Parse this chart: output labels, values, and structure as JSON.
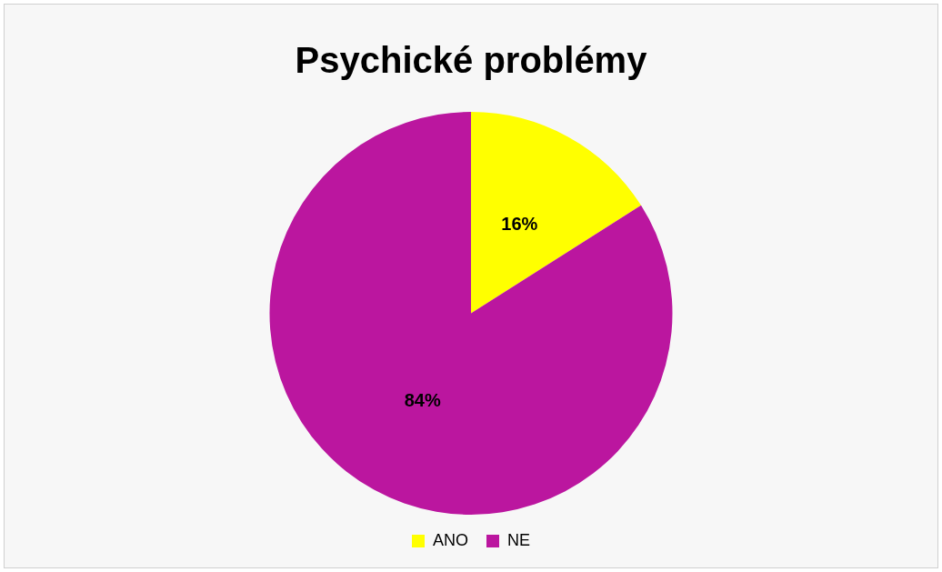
{
  "chart_data": {
    "type": "pie",
    "title": "Psychické problémy",
    "categories": [
      "ANO",
      "NE"
    ],
    "values": [
      16,
      84
    ],
    "colors": [
      "#ffff00",
      "#bb169f"
    ],
    "value_labels": [
      "16%",
      "84%"
    ],
    "legend": "bottom"
  }
}
